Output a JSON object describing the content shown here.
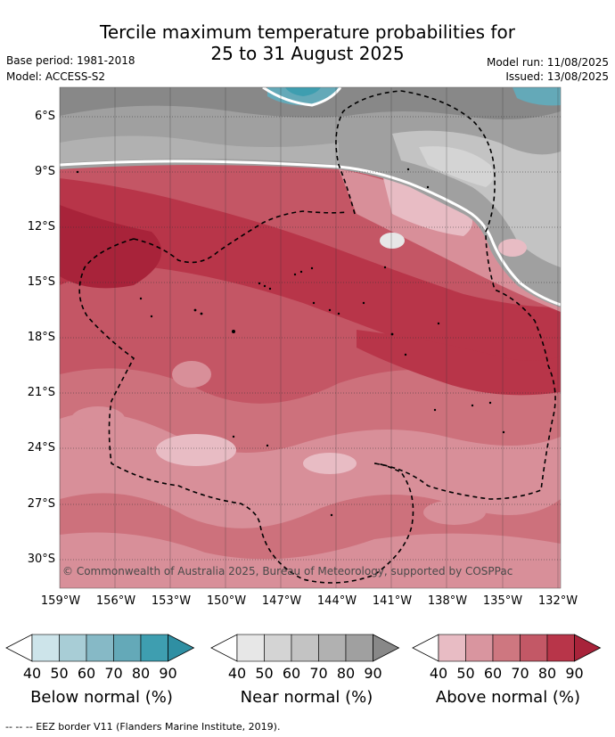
{
  "title_line1": "Tercile maximum temperature probabilities for",
  "title_line2": "25 to 31 August 2025",
  "base_period": "Base period: 1981-2018",
  "model": "Model: ACCESS-S2",
  "model_run": "Model run: 11/08/2025",
  "issued": "Issued: 13/08/2025",
  "lat_ticks": [
    "6°S",
    "9°S",
    "12°S",
    "15°S",
    "18°S",
    "21°S",
    "24°S",
    "27°S",
    "30°S"
  ],
  "lon_ticks": [
    "159°W",
    "156°W",
    "153°W",
    "150°W",
    "147°W",
    "144°W",
    "141°W",
    "138°W",
    "135°W",
    "132°W"
  ],
  "copyright": "© Commonwealth of Australia 2025, Bureau of Meteorology, supported by COSPPac",
  "colorbars": [
    {
      "name": "below",
      "label": "Below normal (%)",
      "ticks": [
        "40",
        "50",
        "60",
        "70",
        "80",
        "90"
      ],
      "colors": [
        "#ffffff",
        "#cde4ea",
        "#a8cdd6",
        "#86b9c6",
        "#64a9b8",
        "#3e9eb0",
        "#2f8fa3"
      ]
    },
    {
      "name": "near",
      "label": "Near normal (%)",
      "ticks": [
        "40",
        "50",
        "60",
        "70",
        "80",
        "90"
      ],
      "colors": [
        "#ffffff",
        "#e7e7e7",
        "#d4d4d4",
        "#c3c3c3",
        "#b1b1b1",
        "#a0a0a0",
        "#888888"
      ]
    },
    {
      "name": "above",
      "label": "Above normal (%)",
      "ticks": [
        "40",
        "50",
        "60",
        "70",
        "80",
        "90"
      ],
      "colors": [
        "#ffffff",
        "#e8bcc4",
        "#d9959f",
        "#ce7780",
        "#c35866",
        "#b83549",
        "#a8233a"
      ]
    }
  ],
  "footer": "--  --  -- EEZ border V11 (Flanders Marine Institute, 2019)."
}
